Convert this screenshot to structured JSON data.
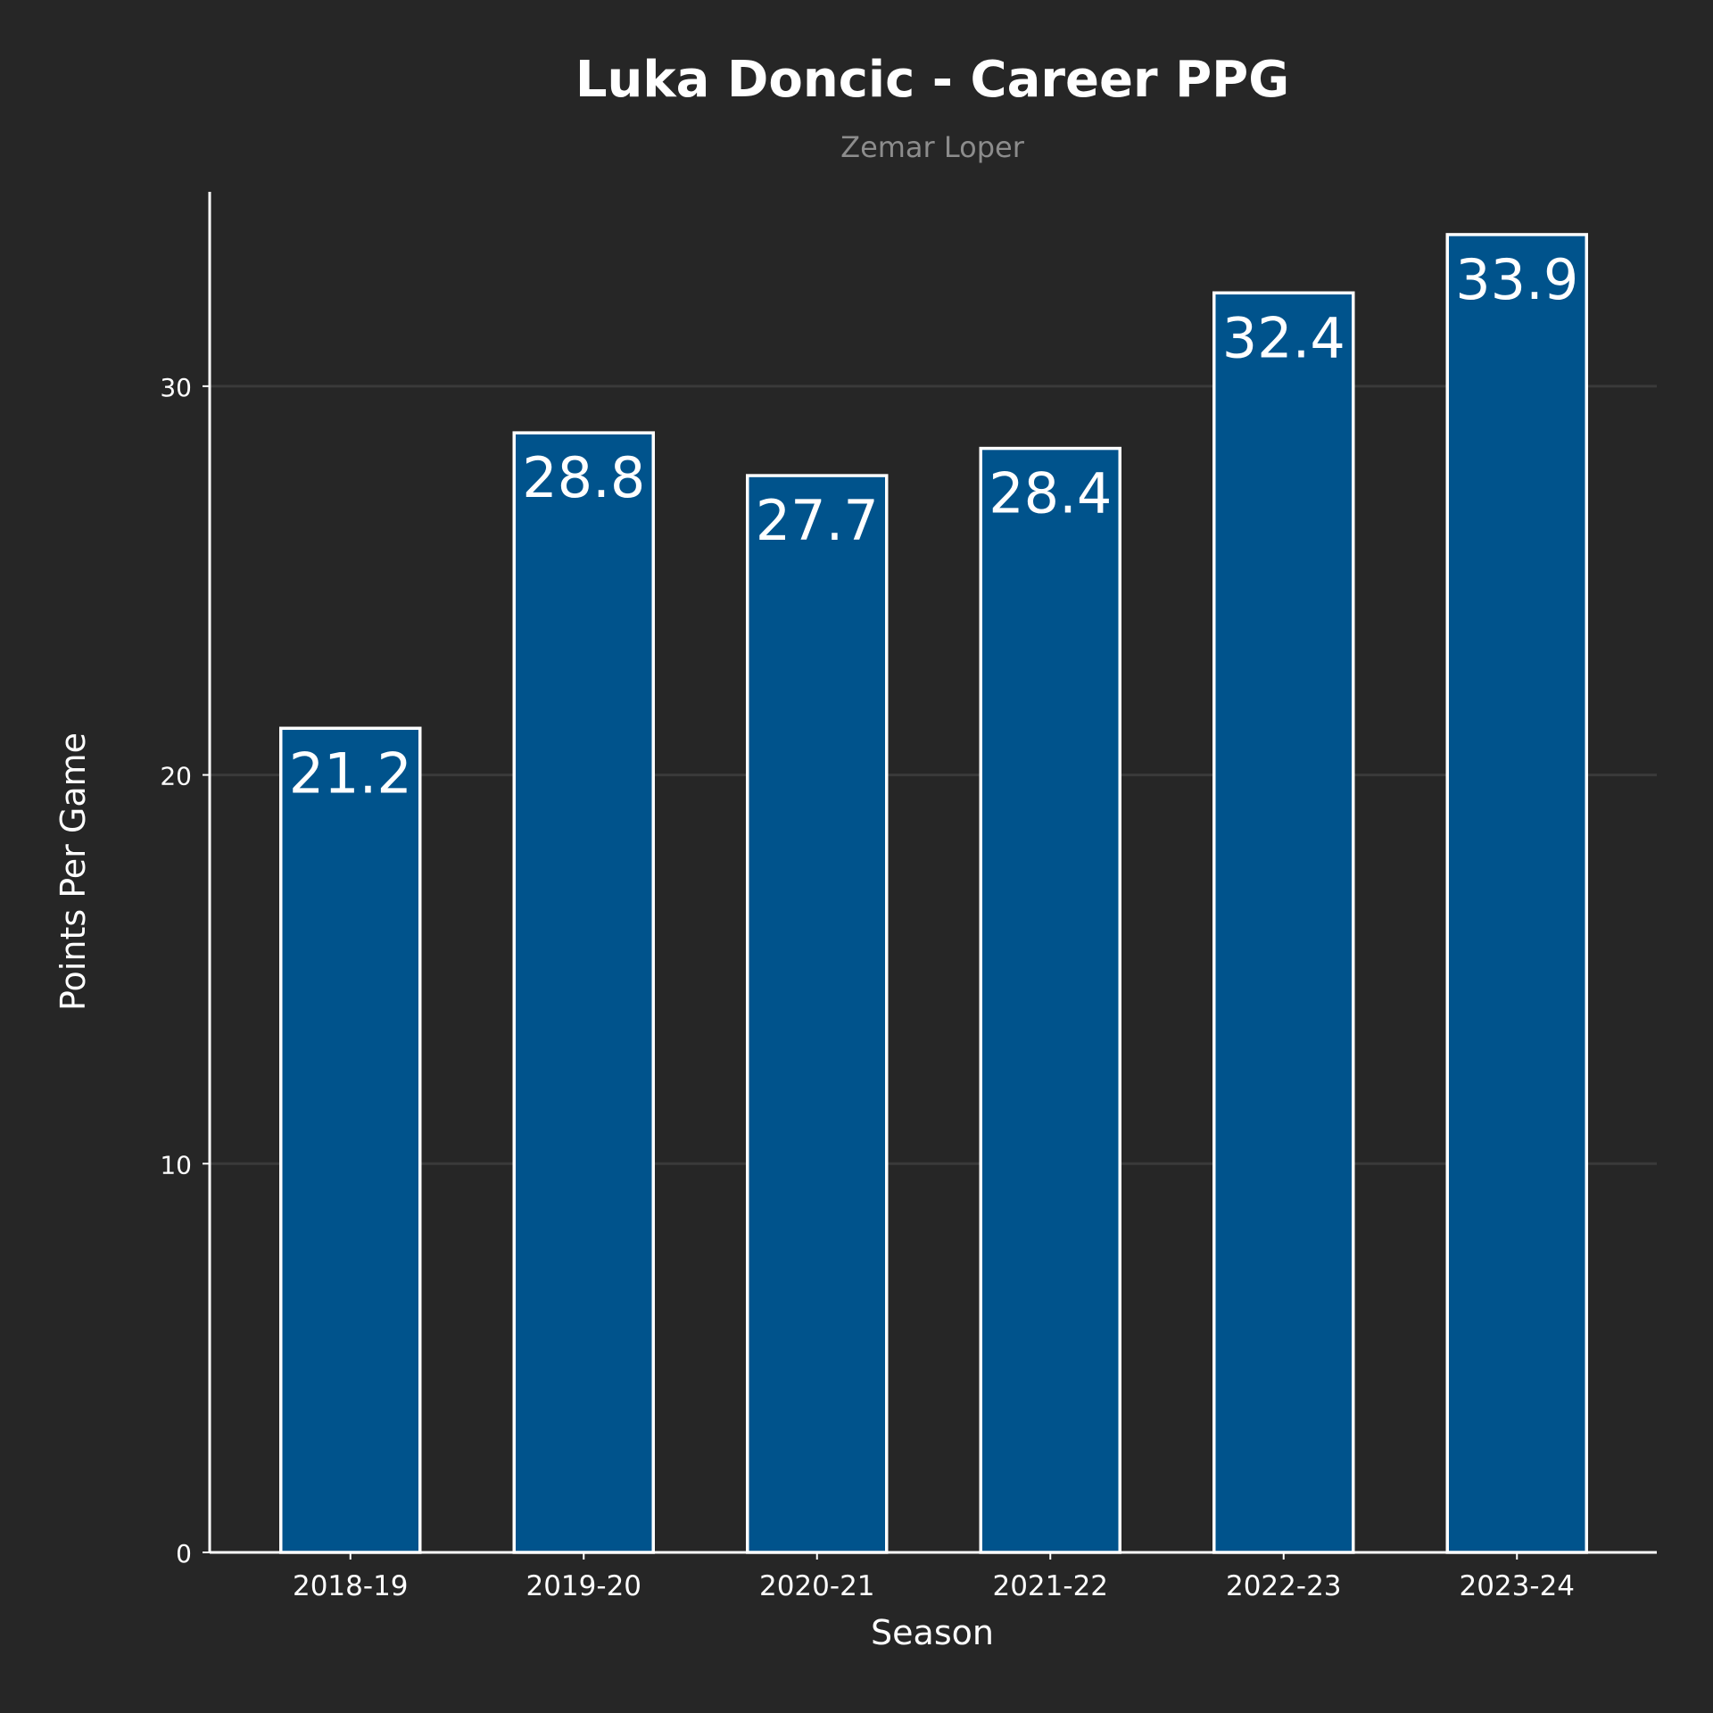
{
  "chart_data": {
    "type": "bar",
    "title": "Luka Doncic - Career PPG",
    "subtitle": "Zemar Loper",
    "xlabel": "Season",
    "ylabel": "Points Per Game",
    "categories": [
      "2018-19",
      "2019-20",
      "2020-21",
      "2021-22",
      "2022-23",
      "2023-24"
    ],
    "values": [
      21.2,
      28.8,
      27.7,
      28.4,
      32.4,
      33.9
    ],
    "data_labels": [
      "21.2",
      "28.8",
      "27.7",
      "28.4",
      "32.4",
      "33.9"
    ],
    "ylim": [
      0,
      35
    ],
    "yticks": [
      0,
      10,
      20,
      30
    ],
    "ytick_labels": [
      "0",
      "10",
      "20",
      "30"
    ],
    "grid": true,
    "legend": "none"
  },
  "colors": {
    "background": "#262626",
    "bar_fill": "#00538C",
    "bar_edge": "#ffffff",
    "text": "#ffffff",
    "subtitle": "#8c8c8c",
    "grid": "#3a3a3a",
    "axis": "#ffffff"
  }
}
